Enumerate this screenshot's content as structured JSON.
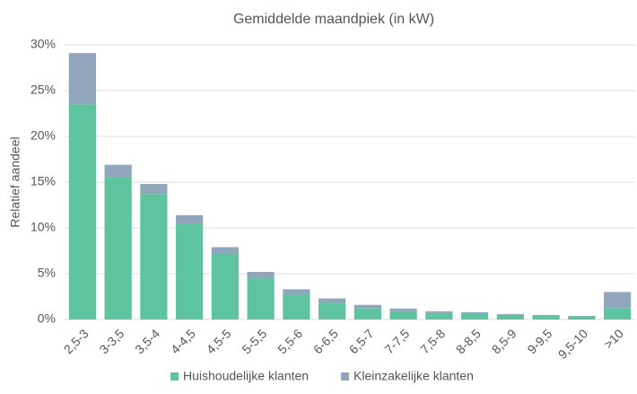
{
  "chart_data": {
    "type": "stacked_bar",
    "title": "Gemiddelde maandpiek (in kW)",
    "y_label": "Relatief aandeel",
    "categories": [
      "2,5-3",
      "3-3,5",
      "3,5-4",
      "4-4,5",
      "4,5-5",
      "5-5,5",
      "5,5-6",
      "6-6,5",
      "6,5-7",
      "7-7,5",
      "7,5-8",
      "8-8,5",
      "8,5-9",
      "9-9,5",
      "9,5-10",
      ">10"
    ],
    "series": [
      {
        "name": "Huishoudelijke klanten",
        "color": "#5ec4a0",
        "values": [
          23.5,
          15.5,
          13.7,
          10.5,
          7.2,
          4.5,
          2.7,
          1.8,
          1.2,
          0.9,
          0.7,
          0.6,
          0.5,
          0.4,
          0.35,
          1.2
        ]
      },
      {
        "name": "Kleinzakelijke klanten",
        "color": "#8fa6bd",
        "values": [
          5.6,
          1.4,
          1.1,
          0.9,
          0.7,
          0.7,
          0.6,
          0.5,
          0.4,
          0.3,
          0.2,
          0.2,
          0.1,
          0.1,
          0.05,
          1.8
        ]
      }
    ],
    "ylim": [
      0,
      30
    ],
    "yticks": [
      {
        "value": 0,
        "label": "0%"
      },
      {
        "value": 5,
        "label": "5%"
      },
      {
        "value": 10,
        "label": "10%"
      },
      {
        "value": 15,
        "label": "15%"
      },
      {
        "value": 20,
        "label": "20%"
      },
      {
        "value": 25,
        "label": "25%"
      },
      {
        "value": 30,
        "label": "30%"
      }
    ],
    "grid": true,
    "legend": "bottom"
  }
}
